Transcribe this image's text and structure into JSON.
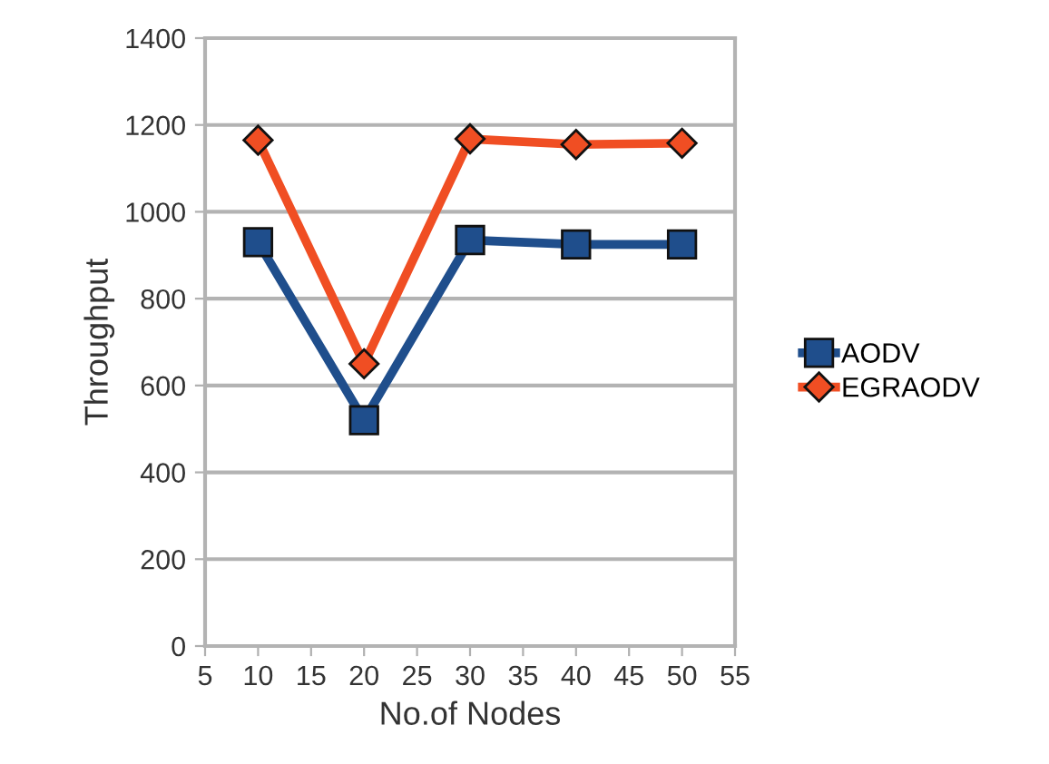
{
  "chart_data": {
    "type": "line",
    "xlabel": "No.of Nodes",
    "ylabel": "Throughput",
    "x": [
      10,
      20,
      30,
      40,
      50
    ],
    "series": [
      {
        "name": "AODV",
        "color": "#1f4e8c",
        "marker": "square",
        "values": [
          930,
          520,
          935,
          925,
          925
        ]
      },
      {
        "name": "EGRAODV",
        "color": "#f04e23",
        "marker": "diamond",
        "values": [
          1165,
          650,
          1168,
          1155,
          1158
        ]
      }
    ],
    "xlim": [
      5,
      55
    ],
    "xticks": [
      5,
      10,
      15,
      20,
      25,
      30,
      35,
      40,
      45,
      50,
      55
    ],
    "ylim": [
      0,
      1400
    ],
    "yticks": [
      0,
      200,
      400,
      600,
      800,
      1000,
      1200,
      1400
    ],
    "grid": "y",
    "legend": "right"
  }
}
